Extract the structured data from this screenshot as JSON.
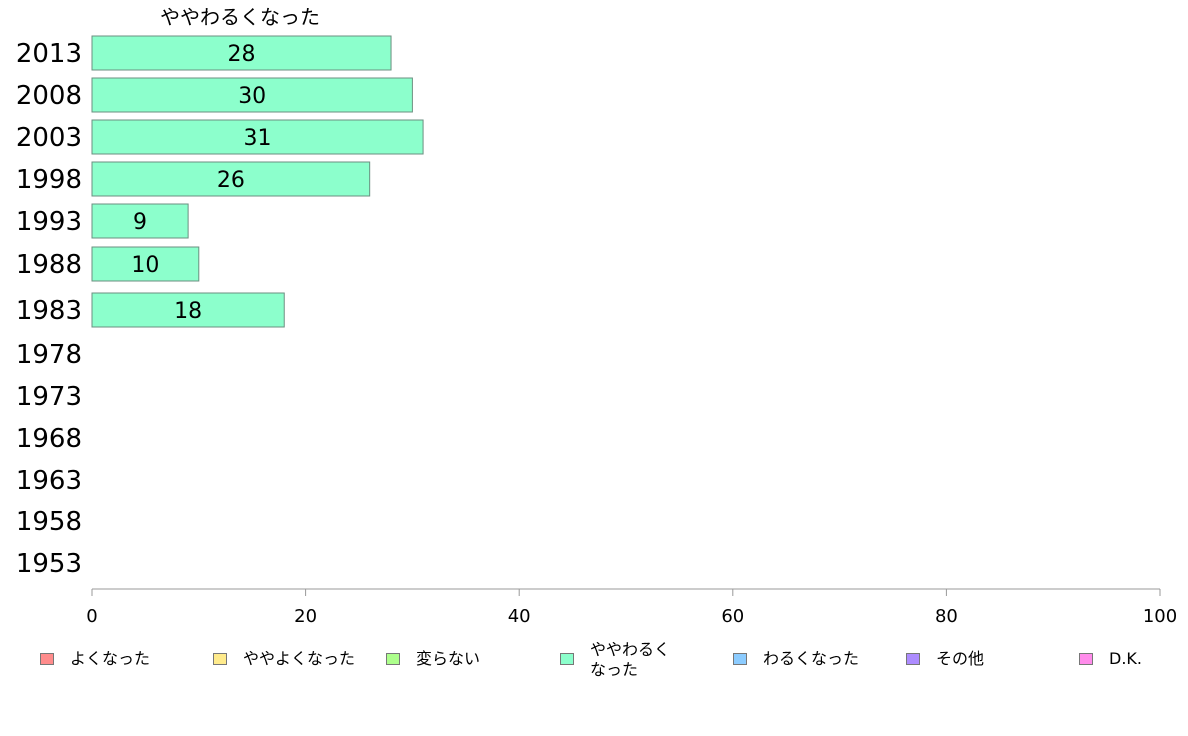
{
  "chart_data": {
    "type": "bar",
    "orientation": "horizontal",
    "title": "ややわるくなった",
    "categories": [
      "2013",
      "2008",
      "2003",
      "1998",
      "1993",
      "1988",
      "1983",
      "1978",
      "1973",
      "1968",
      "1963",
      "1958",
      "1953"
    ],
    "series": [
      {
        "name": "ややわるくなった",
        "color": "#8cffcc",
        "values": [
          28,
          30,
          31,
          26,
          9,
          10,
          18,
          null,
          null,
          null,
          null,
          null,
          null
        ]
      }
    ],
    "xlim": [
      0,
      100
    ],
    "xticks": [
      0,
      20,
      40,
      60,
      80,
      100
    ],
    "grid": false,
    "legend_position": "bottom"
  },
  "legend": [
    {
      "label": "よくなった",
      "color": "#ff8c8c"
    },
    {
      "label": "ややよくなった",
      "color": "#ffeb8c"
    },
    {
      "label": "変らない",
      "color": "#adff8c"
    },
    {
      "label": "ややわるく\nなった",
      "color": "#8cffcc"
    },
    {
      "label": "わるくなった",
      "color": "#8cccff"
    },
    {
      "label": "その他",
      "color": "#ad8cff"
    },
    {
      "label": "D.K.",
      "color": "#ff8ceb"
    }
  ]
}
